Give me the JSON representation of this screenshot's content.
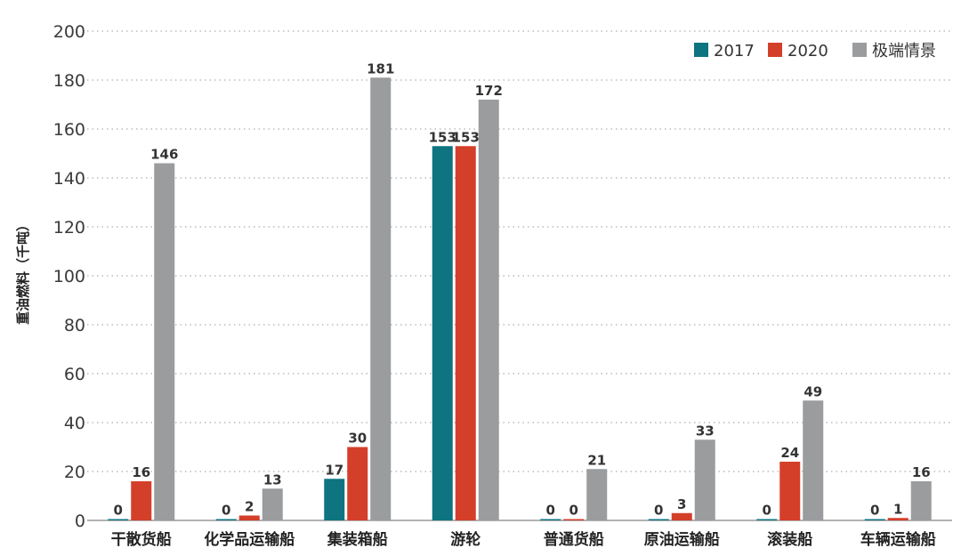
{
  "chart_data": {
    "type": "bar",
    "ylabel": "重油燃料（千吨）",
    "ylim": [
      0,
      200
    ],
    "yticks": [
      0,
      20,
      40,
      60,
      80,
      100,
      120,
      140,
      160,
      180,
      200
    ],
    "grid": true,
    "legend_position": "top-right",
    "categories": [
      "干散货船",
      "化学品运输船",
      "集装箱船",
      "游轮",
      "普通货船",
      "原油运输船",
      "滚装船",
      "车辆运输船"
    ],
    "series": [
      {
        "name": "2017",
        "color": "#0e7480",
        "values": [
          0,
          0,
          17,
          153,
          0,
          0,
          0,
          0
        ]
      },
      {
        "name": "2020",
        "color": "#d43f2a",
        "values": [
          16,
          2,
          30,
          153,
          0,
          3,
          24,
          1
        ]
      },
      {
        "name": "极端情景",
        "color": "#9a9c9e",
        "values": [
          146,
          13,
          181,
          172,
          21,
          33,
          49,
          16
        ]
      }
    ]
  }
}
